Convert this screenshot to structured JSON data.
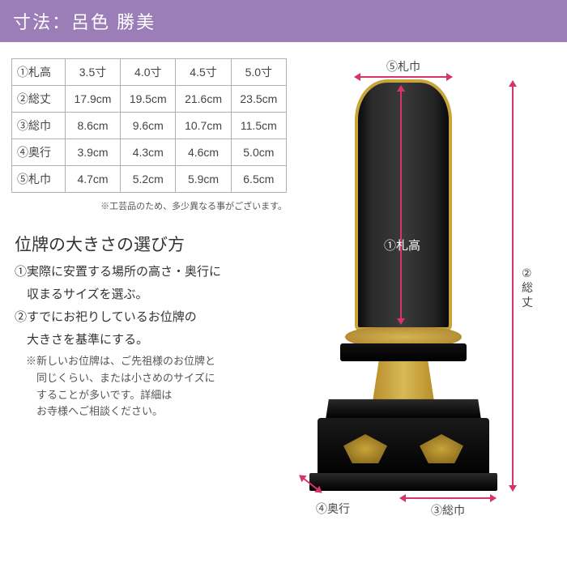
{
  "header": {
    "title": "寸法：呂色 勝美"
  },
  "table": {
    "columns": [
      "①札高",
      "3.5寸",
      "4.0寸",
      "4.5寸",
      "5.0寸"
    ],
    "rows": [
      [
        "②総丈",
        "17.9cm",
        "19.5cm",
        "21.6cm",
        "23.5cm"
      ],
      [
        "③総巾",
        "8.6cm",
        "9.6cm",
        "10.7cm",
        "11.5cm"
      ],
      [
        "④奥行",
        "3.9cm",
        "4.3cm",
        "4.6cm",
        "5.0cm"
      ],
      [
        "⑤札巾",
        "4.7cm",
        "5.2cm",
        "5.9cm",
        "6.5cm"
      ]
    ],
    "note": "※工芸品のため、多少異なる事がございます。"
  },
  "guide": {
    "title": "位牌の大きさの選び方",
    "item1": "①実際に安置する場所の高さ・奥行に",
    "item1b": "　収まるサイズを選ぶ。",
    "item2": "②すでにお祀りしているお位牌の",
    "item2b": "　大きさを基準にする。",
    "note": "※新しいお位牌は、ご先祖様のお位牌と\n　同じくらい、または小さめのサイズに\n　することが多いです。詳細は\n　お寺様へご相談ください。"
  },
  "labels": {
    "top": "⑤札巾",
    "tablet": "①札高",
    "right1": "②",
    "right2": "総丈",
    "bottom": "③総巾",
    "depth": "④奥行"
  },
  "colors": {
    "header_bg": "#9b7eb8",
    "arrow": "#d6356b",
    "gold": "#c9a43a"
  }
}
